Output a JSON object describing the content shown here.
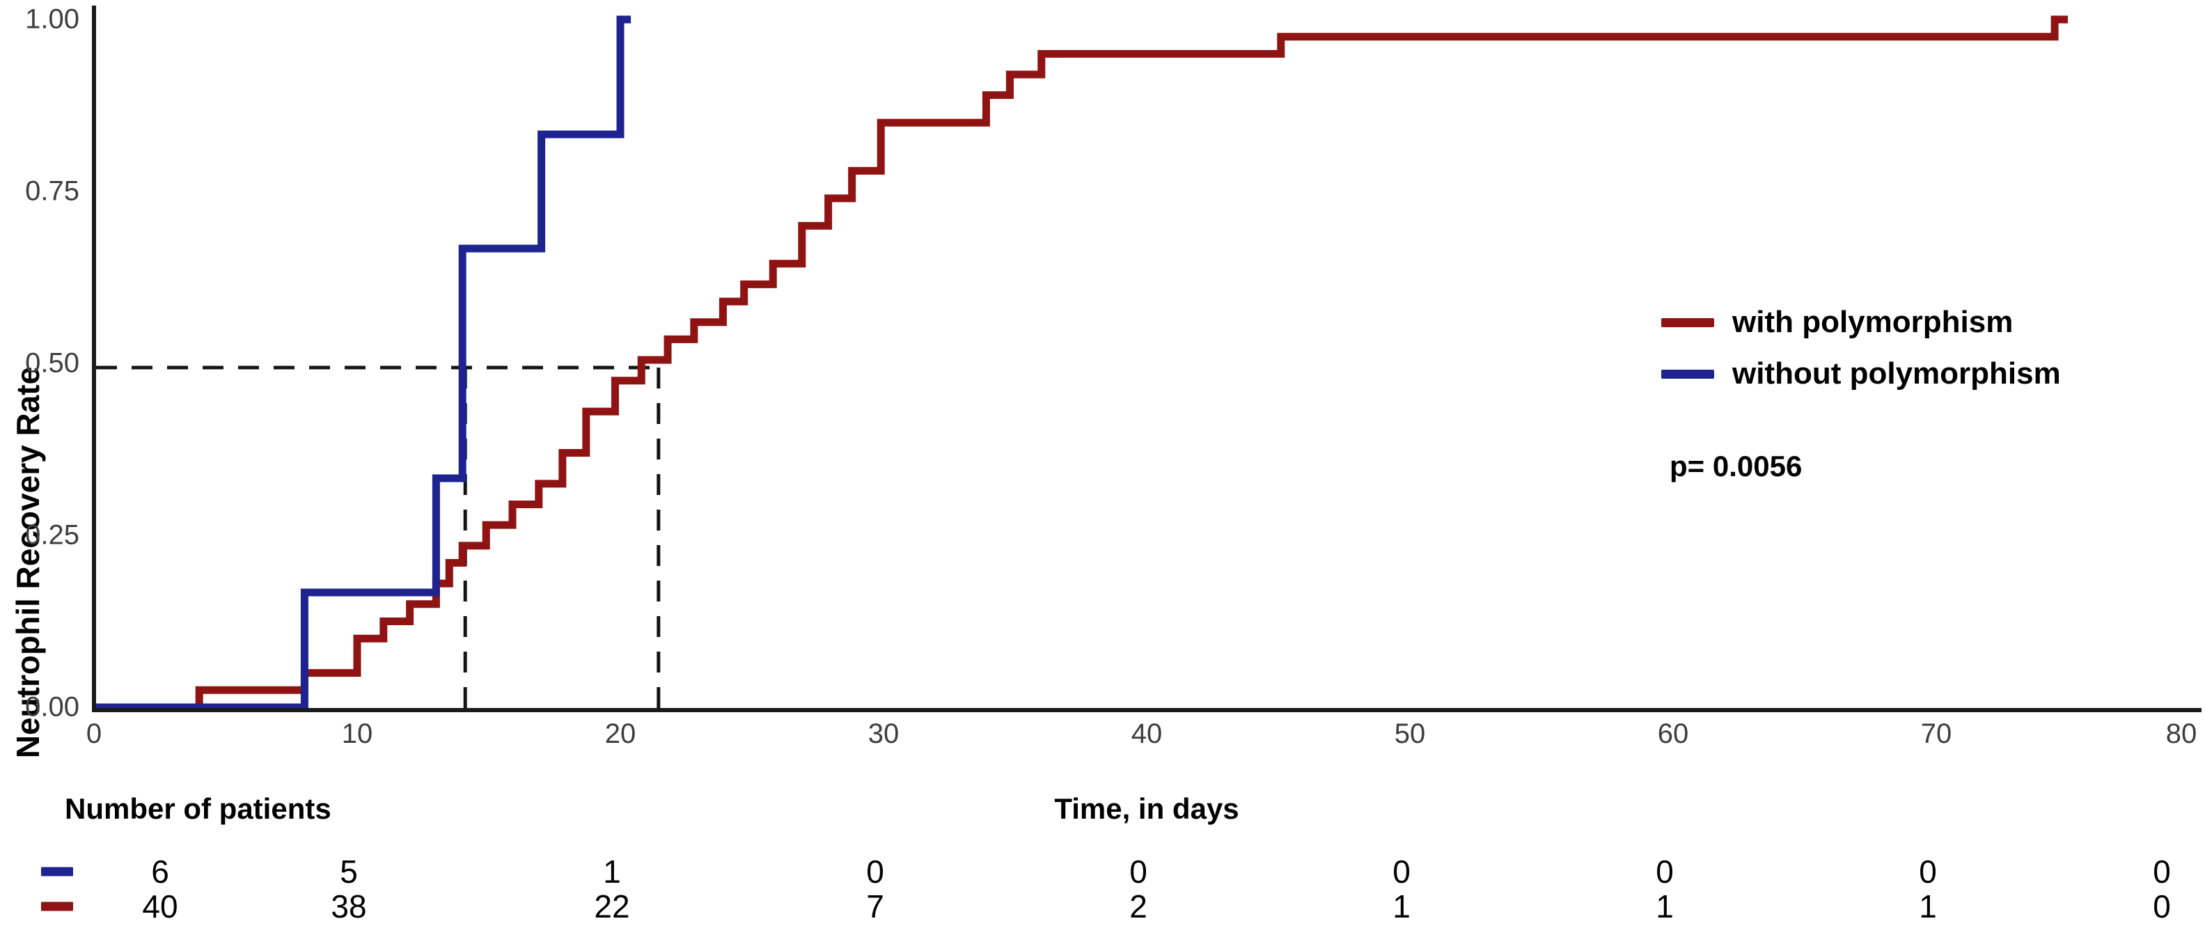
{
  "figure": {
    "y_axis": {
      "title": "Neutrophil Recovery Rate",
      "ticks": [
        "1.00",
        "0.75",
        "0.50",
        "0.25",
        "0.00"
      ]
    },
    "x_axis": {
      "title": "Time, in days",
      "ticks": [
        "0",
        "10",
        "20",
        "30",
        "40",
        "50",
        "60",
        "70",
        "80"
      ]
    },
    "legend": {
      "items": [
        {
          "label": "with polymorphism",
          "color": "#8e1312"
        },
        {
          "label": "without polymorphism",
          "color": "#1e2390"
        }
      ]
    },
    "p_value": "p= 0.0056",
    "risk_table": {
      "title": "Number of patients",
      "rows": [
        {
          "group": "without polymorphism",
          "color": "#1e2390",
          "counts": [
            "6",
            "5",
            "1",
            "0",
            "0",
            "0",
            "0",
            "0",
            "0"
          ]
        },
        {
          "group": "with polymorphism",
          "color": "#8e1312",
          "counts": [
            "40",
            "38",
            "22",
            "7",
            "2",
            "1",
            "1",
            "1",
            "0"
          ]
        }
      ]
    }
  },
  "chart_data": {
    "type": "line",
    "subtype": "kaplan-meier-cumulative-incidence-step",
    "title": "",
    "xlabel": "Time, in days",
    "ylabel": "Neutrophil Recovery Rate",
    "xlim": [
      0,
      80
    ],
    "ylim": [
      0,
      1
    ],
    "x_ticks": [
      0,
      10,
      20,
      30,
      40,
      50,
      60,
      70,
      80
    ],
    "y_ticks": [
      0,
      0.25,
      0.5,
      0.75,
      1.0
    ],
    "grid": false,
    "legend_position": "right-middle",
    "series": [
      {
        "name": "with polymorphism",
        "color": "#8e1312",
        "n_start": 40,
        "median_days": 21.5,
        "steps": [
          [
            0,
            0
          ],
          [
            4,
            0.025
          ],
          [
            8,
            0.05
          ],
          [
            10,
            0.1
          ],
          [
            11,
            0.125
          ],
          [
            12,
            0.15
          ],
          [
            13,
            0.18
          ],
          [
            13.5,
            0.21
          ],
          [
            14,
            0.235
          ],
          [
            14.9,
            0.265
          ],
          [
            15.9,
            0.295
          ],
          [
            16.9,
            0.325
          ],
          [
            17.8,
            0.37
          ],
          [
            18.7,
            0.43
          ],
          [
            19.8,
            0.475
          ],
          [
            20.8,
            0.505
          ],
          [
            21.8,
            0.535
          ],
          [
            22.8,
            0.56
          ],
          [
            23.9,
            0.59
          ],
          [
            24.7,
            0.615
          ],
          [
            25.8,
            0.645
          ],
          [
            26.9,
            0.7
          ],
          [
            27.9,
            0.74
          ],
          [
            28.8,
            0.78
          ],
          [
            29.9,
            0.85
          ],
          [
            33.9,
            0.89
          ],
          [
            34.8,
            0.92
          ],
          [
            36,
            0.95
          ],
          [
            45.1,
            0.975
          ],
          [
            74.5,
            1.0
          ],
          [
            75,
            1.0
          ]
        ]
      },
      {
        "name": "without polymorphism",
        "color": "#1e2390",
        "n_start": 6,
        "median_days": 14,
        "steps": [
          [
            0,
            0
          ],
          [
            8,
            0.167
          ],
          [
            13,
            0.333
          ],
          [
            14,
            0.667
          ],
          [
            17,
            0.833
          ],
          [
            20,
            1.0
          ],
          [
            20.4,
            1.0
          ]
        ]
      }
    ],
    "annotations": {
      "median_guide_rate": 0.5,
      "median_guide_days": [
        14,
        21.45
      ],
      "p_value_text": "p= 0.0056"
    }
  }
}
